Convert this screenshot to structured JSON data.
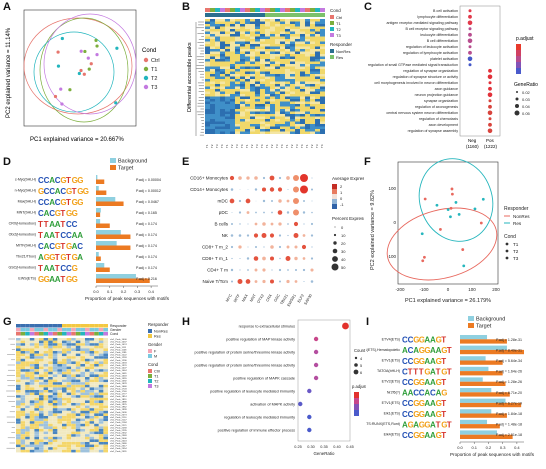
{
  "panels": {
    "A": {
      "label": "A",
      "xlabel": "PC1 explained variance = 20.667%",
      "ylabel": "PC2 explained variance = 11.14%",
      "legend_title": "Cond",
      "legend": [
        "Ctrl",
        "T1",
        "T2",
        "T3"
      ],
      "colors": {
        "Ctrl": "#e6766e",
        "T1": "#7cae3c",
        "T2": "#22b5bd",
        "T3": "#c37ae0"
      }
    },
    "B": {
      "label": "B",
      "ylabel": "Differential accessible peaks",
      "legend_top": [
        "Cond",
        "Ctrl",
        "T1",
        "T2",
        "T3"
      ],
      "legend_bottom": [
        "Responder",
        "NonRes",
        "Res"
      ]
    },
    "C": {
      "label": "C",
      "terms": [
        "B cell activation",
        "lymphocyte differentiation",
        "antigen receptor-mediated signaling pathway",
        "B cell receptor signaling pathway",
        "leukocyte differentiation",
        "B cell differentiation",
        "regulation of leukocyte activation",
        "regulation of lymphocyte activation",
        "platelet activation",
        "regulation of small GTPase mediated signal transduction",
        "regulation of synapse organization",
        "regulation of synapse structure or activity",
        "cell morphogenesis involved in neuron differentiation",
        "axon guidance",
        "neuron projection guidance",
        "synapse organization",
        "regulation of axonogenesis",
        "central nervous system neuron differentiation",
        "regulation of chemotaxis",
        "axon development",
        "regulation of synapse assembly"
      ],
      "x_labels": [
        "Neg\n(1160)",
        "Pos\n(1222)"
      ],
      "legend_padj": "p.adjust",
      "legend_ratio": "GeneRatio",
      "ratio_ticks": [
        "0.02",
        "0.03",
        "0.04",
        "0.05"
      ]
    },
    "D": {
      "label": "D",
      "legend": [
        "Background",
        "Target"
      ],
      "tfs": [
        "c-Myc(bHLH)",
        "n-Myc(bHLH)",
        "Max(bHLH)",
        "MNT(bHLH)",
        "CRX(Homeobox)",
        "Otx2(Homeobox)",
        "MITF(bHLH)",
        "Tbx21/Tbox)",
        "GSC(Homeobox)",
        "EWS(ETS)"
      ],
      "padj": [
        "P.adj = 0.00004",
        "P.adj = 0.00012",
        "P.adj = 0.0467",
        "P.adj = 0.165",
        "P.adj = 0.174",
        "P.adj = 0.174",
        "P.adj = 0.174",
        "P.adj = 0.174",
        "P.adj = 0.174",
        "P.adj = 0.216"
      ],
      "logos": [
        "CCACGTGG",
        "GCCACGTGG",
        "CCACGTGG",
        "CACGTGG",
        "TTAATCC",
        "TAATCCAA",
        "CACGTGAC",
        "AGGTGTGA",
        "TAATCCG",
        "GGAATGG"
      ],
      "background": [
        0.01,
        0.02,
        0.14,
        0.035,
        0.03,
        0.18,
        0.15,
        0.02,
        0.06,
        0.29
      ],
      "target": [
        0.06,
        0.075,
        0.2,
        0.03,
        0.1,
        0.25,
        0.25,
        0.035,
        0.1,
        0.39
      ],
      "ticks": [
        "0.0",
        "0.1",
        "0.2",
        "0.3",
        "0.4"
      ],
      "xlabel": "Proportion of peak sequences with motifs"
    },
    "E": {
      "label": "E",
      "rows": [
        "CD16+ Monocytes",
        "CD14+ Monocytes",
        "mDC",
        "pDC",
        "B cells",
        "NK",
        "CD8+ T m_2",
        "CD8+ T m_1",
        "CD4+ T m",
        "Naive T/Tcm"
      ],
      "genes": [
        "MYC",
        "MITF",
        "MAX",
        "MNT",
        "OTX2",
        "CRX",
        "GSC",
        "TBX21",
        "EWSR1",
        "ELF2",
        "SAP30"
      ],
      "legend_avg": "Average Expression",
      "avg_ticks": [
        "2",
        "1",
        "0",
        "-1"
      ],
      "legend_pct": "Percent Expressed",
      "pct_ticks": [
        "0",
        "10",
        "20",
        "30",
        "40",
        "50"
      ]
    },
    "F": {
      "label": "F",
      "xlabel": "PC1 explained variance = 26.179%",
      "ylabel": "PC2 explained variance = 9.82%",
      "x_ticks": [
        "-200",
        "-100",
        "0",
        "100",
        "200"
      ],
      "y_ticks": [
        "100",
        "0",
        "-100"
      ],
      "legend_resp": "Responder",
      "resp": [
        "NonRes",
        "Res"
      ],
      "legend_cond": "Cond",
      "cond": [
        "T1",
        "T2",
        "T3"
      ],
      "colors": {
        "NonRes": "#e8695f",
        "Res": "#26b6bd"
      }
    },
    "G": {
      "label": "G",
      "legend_resp": "Responder",
      "resp": [
        "NonRes",
        "Res"
      ],
      "legend_gender": "Gender",
      "gender": [
        "F",
        "M"
      ],
      "legend_cond": "Cond",
      "cond": [
        "Ctrl",
        "T1",
        "T2",
        "T3"
      ],
      "row_headers": [
        "Responder",
        "Gender",
        "Cond"
      ]
    },
    "H": {
      "label": "H",
      "terms": [
        "response to extracellular stimulus",
        "positive regulation of MAP kinase activity",
        "positive regulation of protein serine/threonine kinase activity",
        "positive regulation of protein serine/threonine kinase activity",
        "positive regulation of MAPK cascade",
        "positive regulation of leukocyte mediated immunity",
        "activation of MAPK activity",
        "regulation of leukocyte mediated immunity",
        "positive regulation of immune effector process"
      ],
      "generatio": [
        0.046,
        0.033,
        0.033,
        0.033,
        0.033,
        0.03,
        0.026,
        0.03,
        0.03
      ],
      "ticks": [
        "0.25",
        "0.30",
        "0.35",
        "0.40",
        "0.45"
      ],
      "xlabel": "GeneRatio",
      "legend_count": "Count",
      "count_ticks": [
        "4",
        "5",
        "6"
      ],
      "legend_padj": "p.adjust"
    },
    "I": {
      "label": "I",
      "legend": [
        "Background",
        "Target"
      ],
      "tfs": [
        "ETV4(ETS)",
        "ERG(ETS),Hematopoietic",
        "ETV1(ETS)",
        "TATOA(bHLH)",
        "ETV2(ETS)",
        "Nr2f6(?)",
        "ETV1(ETS)",
        "Elk1(ETS)",
        "ETS:RUNX(ETS,Runt)",
        "Elk4(ETS)"
      ],
      "padj": [
        "P.adj = 1.28e-31",
        "P.adj = 8.49e-31",
        "P.adj = 5.64e-34",
        "P.adj = 1.64e-26",
        "P.adj = 1.28e-26",
        "P.adj = 6.71e-20",
        "P.adj = 6.27e-19",
        "P.adj = 1.84e-18",
        "P.adj = 1.48e-18",
        "P.adj = 2.51e-18"
      ],
      "logos": [
        "CCGGAAGT",
        "ACAGGAAGT",
        "CCGGAAGT",
        "CTTTGATGT",
        "CCGGAAGT",
        "AACCACAG",
        "CCGGAAGT",
        "CCGGAAGT",
        "AGAGGATGT",
        "CCGGAAGT"
      ],
      "background": [
        0.19,
        0.33,
        0.18,
        0.2,
        0.16,
        0.22,
        0.32,
        0.22,
        0.19,
        0.26
      ],
      "target": [
        0.33,
        0.45,
        0.3,
        0.3,
        0.32,
        0.35,
        0.43,
        0.33,
        0.28,
        0.37
      ],
      "ticks": [
        "0.0",
        "0.1",
        "0.2",
        "0.3",
        "0.4"
      ],
      "xlabel": "Proportion of peak sequences with motifs"
    }
  },
  "colors": {
    "background_bar": "#8fd0e0",
    "target_bar": "#ec7a22",
    "dot_red": "#e0312c",
    "dot_blue": "#3e56c8",
    "heat_high": "#f0d86a",
    "heat_low": "#3f8fc8"
  }
}
